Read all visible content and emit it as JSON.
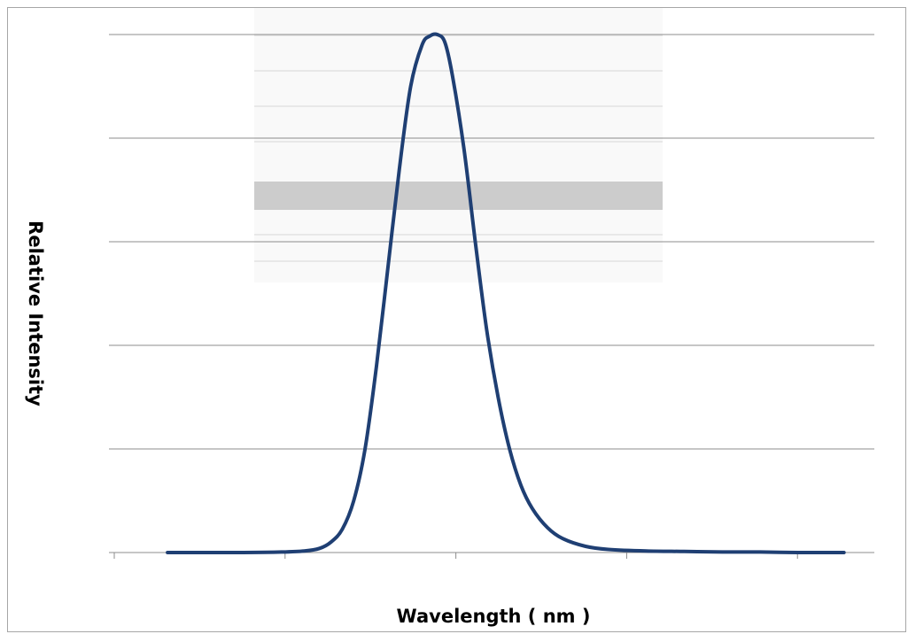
{
  "chart_data": {
    "type": "line",
    "title": "",
    "xlabel": "Wavelength ( nm )",
    "ylabel": "Relative  Intensity",
    "xlim": [
      0,
      100
    ],
    "ylim": [
      0,
      1
    ],
    "x_tick_count": 5,
    "y_gridline_count": 5,
    "grid": true,
    "legend": "none",
    "series": [
      {
        "color": "#1f3f73",
        "peak_x": 42.5,
        "x": [
          7.0,
          12,
          17,
          22,
          25,
          27,
          28.5,
          30,
          31.5,
          33,
          34.5,
          36,
          37.5,
          39,
          40.5,
          41.5,
          42.5,
          43.5,
          44.5,
          46,
          47.5,
          49,
          50.5,
          52,
          53.5,
          55,
          57,
          59,
          62,
          65,
          70,
          75,
          80,
          85,
          90,
          95,
          96.0
        ],
        "values": [
          0.0,
          0.0,
          0.0,
          0.001,
          0.003,
          0.008,
          0.02,
          0.045,
          0.1,
          0.2,
          0.36,
          0.55,
          0.74,
          0.9,
          0.98,
          0.997,
          1.0,
          0.985,
          0.92,
          0.78,
          0.6,
          0.43,
          0.3,
          0.2,
          0.13,
          0.085,
          0.048,
          0.027,
          0.012,
          0.006,
          0.003,
          0.002,
          0.001,
          0.001,
          0.0,
          0.0,
          0.0
        ]
      }
    ]
  }
}
